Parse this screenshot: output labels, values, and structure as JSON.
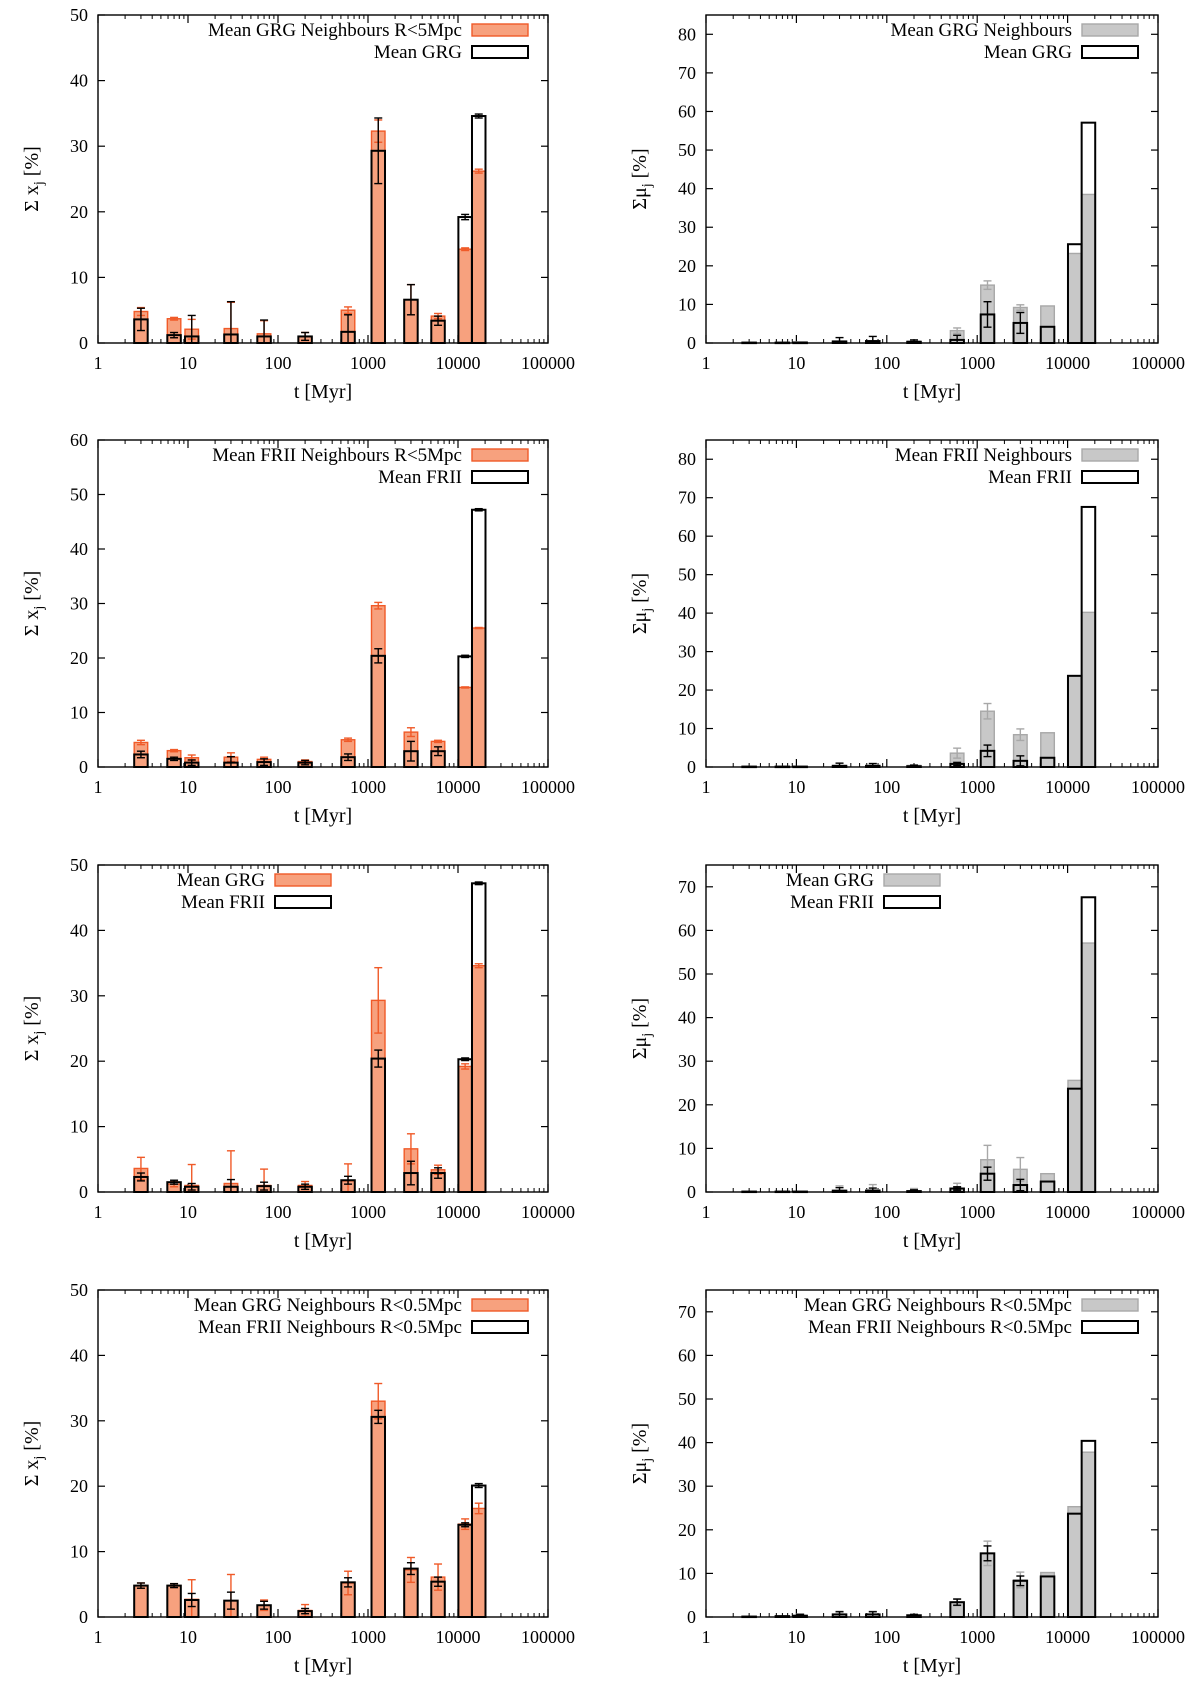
{
  "colors": {
    "orange": "#f7a17e",
    "orange_edge": "#f05a28",
    "grey": "#c8c8c8",
    "grey_edge": "#a8a8a8",
    "outline": "#000000"
  },
  "chart_data": [
    {
      "type": "bar",
      "xlabel": "t [Myr]",
      "ylabel": "Σ x",
      "ylabel_sub": "j",
      "ylabel_unit": "[%]",
      "xscale": "log",
      "xlim": [
        1,
        100000
      ],
      "xticks": [
        "1",
        "10",
        "100",
        "1000",
        "10000",
        "100000"
      ],
      "ylim": [
        0,
        50
      ],
      "yticks": [
        0,
        10,
        20,
        30,
        40,
        50
      ],
      "legend_position": "top-right",
      "x": [
        3,
        7,
        11,
        30,
        70,
        200,
        600,
        1300,
        3000,
        6000,
        12000,
        17000
      ],
      "series": [
        {
          "name": "Mean GRG Neighbours R<5Mpc",
          "style": "orange",
          "values": [
            4.8,
            3.7,
            2.1,
            2.2,
            1.4,
            1.0,
            5.0,
            32.3,
            6.6,
            4.1,
            14.3,
            26.2
          ],
          "errors": [
            0.6,
            0.2,
            1.5,
            4.0,
            2.0,
            0.6,
            0.5,
            1.7,
            2.3,
            0.4,
            0.2,
            0.3
          ]
        },
        {
          "name": "Mean GRG",
          "style": "outline",
          "values": [
            3.6,
            1.2,
            1.0,
            1.3,
            1.0,
            1.0,
            1.7,
            29.3,
            6.6,
            3.4,
            19.2,
            34.6
          ],
          "errors": [
            1.7,
            0.4,
            3.2,
            5.0,
            2.5,
            0.6,
            2.6,
            5.0,
            2.3,
            0.7,
            0.4,
            0.3
          ]
        }
      ]
    },
    {
      "type": "bar",
      "xlabel": "t [Myr]",
      "ylabel": "Σμ",
      "ylabel_sub": "j",
      "ylabel_unit": "[%]",
      "xscale": "log",
      "xlim": [
        1,
        100000
      ],
      "xticks": [
        "1",
        "10",
        "100",
        "1000",
        "10000",
        "100000"
      ],
      "ylim": [
        0,
        85
      ],
      "yticks": [
        0,
        10,
        20,
        30,
        40,
        50,
        60,
        70,
        80
      ],
      "legend_position": "top-right",
      "x": [
        3,
        7,
        11,
        30,
        70,
        200,
        600,
        1300,
        3000,
        6000,
        12000,
        17000
      ],
      "series": [
        {
          "name": "Mean GRG Neighbours",
          "style": "grey",
          "values": [
            0.2,
            0.2,
            0.3,
            0.5,
            0.6,
            0.5,
            3.2,
            15.0,
            9.2,
            9.6,
            23.2,
            38.5
          ],
          "errors": [
            0,
            0,
            0,
            0,
            0,
            0,
            0.7,
            1.1,
            0.7,
            0,
            0,
            0
          ]
        },
        {
          "name": "Mean GRG",
          "style": "outline",
          "values": [
            0.1,
            0.1,
            0.1,
            0.4,
            0.5,
            0.3,
            0.8,
            7.4,
            5.2,
            4.2,
            25.6,
            57.1
          ],
          "errors": [
            0,
            0,
            0,
            1.0,
            1.2,
            0.5,
            1.2,
            3.3,
            2.7,
            0,
            0,
            0
          ]
        }
      ]
    },
    {
      "type": "bar",
      "xlabel": "t [Myr]",
      "ylabel": "Σ x",
      "ylabel_sub": "j",
      "ylabel_unit": "[%]",
      "xscale": "log",
      "xlim": [
        1,
        100000
      ],
      "xticks": [
        "1",
        "10",
        "100",
        "1000",
        "10000",
        "100000"
      ],
      "ylim": [
        0,
        60
      ],
      "yticks": [
        0,
        10,
        20,
        30,
        40,
        50,
        60
      ],
      "legend_position": "top-right",
      "x": [
        3,
        7,
        11,
        30,
        70,
        200,
        600,
        1300,
        3000,
        6000,
        12000,
        17000
      ],
      "series": [
        {
          "name": "Mean FRII Neighbours R<5Mpc",
          "style": "orange",
          "values": [
            4.5,
            3.0,
            1.7,
            1.8,
            1.4,
            1.0,
            5.0,
            29.6,
            6.4,
            4.7,
            14.6,
            25.5
          ],
          "errors": [
            0.4,
            0.2,
            0.5,
            0.8,
            0.4,
            0.3,
            0.3,
            0.6,
            0.8,
            0.2,
            0.1,
            0.1
          ]
        },
        {
          "name": "Mean FRII",
          "style": "outline",
          "values": [
            2.3,
            1.5,
            0.8,
            0.8,
            0.9,
            0.8,
            1.8,
            20.4,
            2.9,
            2.9,
            20.3,
            47.2
          ],
          "errors": [
            0.6,
            0.3,
            0.5,
            1.1,
            0.6,
            0.4,
            0.6,
            1.3,
            1.8,
            0.8,
            0.2,
            0.2
          ]
        }
      ]
    },
    {
      "type": "bar",
      "xlabel": "t [Myr]",
      "ylabel": "Σμ",
      "ylabel_sub": "j",
      "ylabel_unit": "[%]",
      "xscale": "log",
      "xlim": [
        1,
        100000
      ],
      "xticks": [
        "1",
        "10",
        "100",
        "1000",
        "10000",
        "100000"
      ],
      "ylim": [
        0,
        85
      ],
      "yticks": [
        0,
        10,
        20,
        30,
        40,
        50,
        60,
        70,
        80
      ],
      "legend_position": "top-right",
      "x": [
        3,
        7,
        11,
        30,
        70,
        200,
        600,
        1300,
        3000,
        6000,
        12000,
        17000
      ],
      "series": [
        {
          "name": "Mean FRII Neighbours",
          "style": "grey",
          "values": [
            0.2,
            0.2,
            0.2,
            0.4,
            0.4,
            0.4,
            3.6,
            14.5,
            8.4,
            8.9,
            23.7,
            40.2
          ],
          "errors": [
            0,
            0,
            0,
            0,
            0,
            0,
            1.3,
            2.0,
            1.5,
            0,
            0,
            0
          ]
        },
        {
          "name": "Mean FRII",
          "style": "outline",
          "values": [
            0.1,
            0.1,
            0.1,
            0.3,
            0.3,
            0.2,
            0.8,
            4.2,
            1.6,
            2.4,
            23.7,
            67.6
          ],
          "errors": [
            0,
            0,
            0,
            0.7,
            0.6,
            0.3,
            0.4,
            1.5,
            1.3,
            0,
            0,
            0
          ]
        }
      ]
    },
    {
      "type": "bar",
      "xlabel": "t [Myr]",
      "ylabel": "Σ x",
      "ylabel_sub": "j",
      "ylabel_unit": "[%]",
      "xscale": "log",
      "xlim": [
        1,
        100000
      ],
      "xticks": [
        "1",
        "10",
        "100",
        "1000",
        "10000",
        "100000"
      ],
      "ylim": [
        0,
        50
      ],
      "yticks": [
        0,
        10,
        20,
        30,
        40,
        50
      ],
      "legend_position": "top-center",
      "x": [
        3,
        7,
        11,
        30,
        70,
        200,
        600,
        1300,
        3000,
        6000,
        12000,
        17000
      ],
      "series": [
        {
          "name": "Mean GRG",
          "style": "orange",
          "values": [
            3.6,
            1.2,
            1.0,
            1.3,
            1.0,
            1.0,
            1.7,
            29.3,
            6.6,
            3.4,
            19.2,
            34.6
          ],
          "errors": [
            1.7,
            0.4,
            3.2,
            5.0,
            2.5,
            0.6,
            2.6,
            5.0,
            2.3,
            0.7,
            0.4,
            0.3
          ]
        },
        {
          "name": "Mean FRII",
          "style": "outline",
          "values": [
            2.3,
            1.5,
            0.8,
            0.8,
            0.9,
            0.8,
            1.8,
            20.4,
            2.9,
            2.9,
            20.3,
            47.2
          ],
          "errors": [
            0.6,
            0.3,
            0.5,
            1.1,
            0.6,
            0.4,
            0.6,
            1.3,
            1.8,
            0.8,
            0.2,
            0.2
          ]
        }
      ]
    },
    {
      "type": "bar",
      "xlabel": "t [Myr]",
      "ylabel": "Σμ",
      "ylabel_sub": "j",
      "ylabel_unit": "[%]",
      "xscale": "log",
      "xlim": [
        1,
        100000
      ],
      "xticks": [
        "1",
        "10",
        "100",
        "1000",
        "10000",
        "100000"
      ],
      "ylim": [
        0,
        75
      ],
      "yticks": [
        0,
        10,
        20,
        30,
        40,
        50,
        60,
        70
      ],
      "legend_position": "top-center",
      "x": [
        3,
        7,
        11,
        30,
        70,
        200,
        600,
        1300,
        3000,
        6000,
        12000,
        17000
      ],
      "series": [
        {
          "name": "Mean GRG",
          "style": "grey",
          "values": [
            0.1,
            0.1,
            0.1,
            0.4,
            0.5,
            0.3,
            0.8,
            7.4,
            5.2,
            4.2,
            25.6,
            57.1
          ],
          "errors": [
            0,
            0,
            0,
            1.0,
            1.2,
            0.5,
            1.2,
            3.3,
            2.7,
            0,
            0,
            0
          ]
        },
        {
          "name": "Mean FRII",
          "style": "outline",
          "values": [
            0.1,
            0.1,
            0.1,
            0.3,
            0.3,
            0.2,
            0.8,
            4.2,
            1.6,
            2.4,
            23.7,
            67.6
          ],
          "errors": [
            0,
            0,
            0,
            0.7,
            0.6,
            0.3,
            0.4,
            1.5,
            1.3,
            0,
            0,
            0
          ]
        }
      ]
    },
    {
      "type": "bar",
      "xlabel": "t [Myr]",
      "ylabel": "Σ x",
      "ylabel_sub": "j",
      "ylabel_unit": "[%]",
      "xscale": "log",
      "xlim": [
        1,
        100000
      ],
      "xticks": [
        "1",
        "10",
        "100",
        "1000",
        "10000",
        "100000"
      ],
      "ylim": [
        0,
        50
      ],
      "yticks": [
        0,
        10,
        20,
        30,
        40,
        50
      ],
      "legend_position": "top-right",
      "x": [
        3,
        7,
        11,
        30,
        70,
        200,
        600,
        1300,
        3000,
        6000,
        12000,
        17000
      ],
      "series": [
        {
          "name": "Mean GRG Neighbours R<0.5Mpc",
          "style": "orange",
          "values": [
            4.8,
            4.8,
            2.7,
            2.5,
            1.8,
            1.0,
            5.2,
            33.0,
            7.2,
            6.1,
            14.2,
            16.6
          ],
          "errors": [
            0.4,
            0.3,
            3.0,
            4.0,
            0.8,
            0.9,
            1.8,
            2.7,
            1.9,
            2.0,
            0.8,
            0.8
          ]
        },
        {
          "name": "Mean FRII Neighbours R<0.5Mpc",
          "style": "outline",
          "values": [
            4.8,
            4.8,
            2.6,
            2.5,
            1.8,
            0.9,
            5.3,
            30.6,
            7.4,
            5.4,
            14.1,
            20.1
          ],
          "errors": [
            0.4,
            0.3,
            1.0,
            1.3,
            0.6,
            0.4,
            0.7,
            1.0,
            0.9,
            0.7,
            0.3,
            0.3
          ]
        }
      ]
    },
    {
      "type": "bar",
      "xlabel": "t [Myr]",
      "ylabel": "Σμ",
      "ylabel_sub": "j",
      "ylabel_unit": "[%]",
      "xscale": "log",
      "xlim": [
        1,
        100000
      ],
      "xticks": [
        "1",
        "10",
        "100",
        "1000",
        "10000",
        "100000"
      ],
      "ylim": [
        0,
        75
      ],
      "yticks": [
        0,
        10,
        20,
        30,
        40,
        50,
        60,
        70
      ],
      "legend_position": "top-right",
      "x": [
        3,
        7,
        11,
        30,
        70,
        200,
        600,
        1300,
        3000,
        6000,
        12000,
        17000
      ],
      "series": [
        {
          "name": "Mean GRG Neighbours R<0.5Mpc",
          "style": "grey",
          "values": [
            0.1,
            0.2,
            0.3,
            0.6,
            0.6,
            0.4,
            3.4,
            14.6,
            8.5,
            10.2,
            25.3,
            37.8
          ],
          "errors": [
            0,
            0,
            0.4,
            0.7,
            0.7,
            0.2,
            0.8,
            2.8,
            1.8,
            0,
            0,
            0
          ]
        },
        {
          "name": "Mean FRII Neighbours R<0.5Mpc",
          "style": "outline",
          "values": [
            0.1,
            0.2,
            0.3,
            0.6,
            0.6,
            0.4,
            3.4,
            14.6,
            8.3,
            9.3,
            23.7,
            40.4
          ],
          "errors": [
            0,
            0,
            0.3,
            0.6,
            0.6,
            0.2,
            0.7,
            1.7,
            1.1,
            0,
            0,
            0
          ]
        }
      ]
    }
  ]
}
